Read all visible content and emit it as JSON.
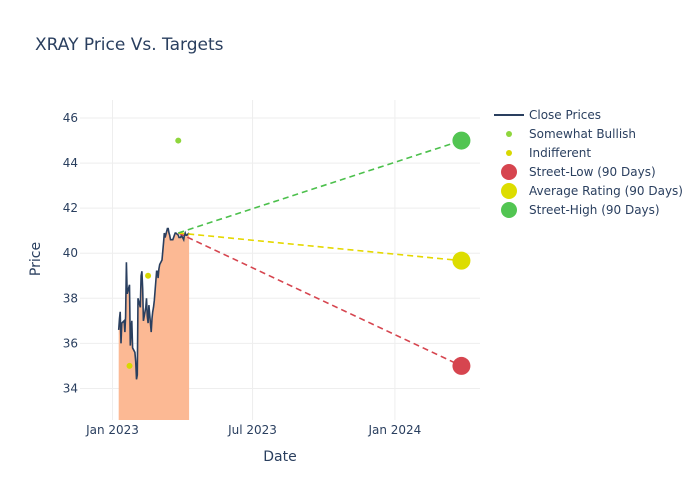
{
  "chart_data": {
    "type": "line",
    "title": "XRAY Price Vs. Targets",
    "xlabel": "Date",
    "ylabel": "Price",
    "ylim": [
      32.6,
      46.8
    ],
    "xlim": [
      "2022-11-20",
      "2024-04-20"
    ],
    "grid": true,
    "legend_position": "right",
    "x_ticks": [
      {
        "date": "2023-01-01",
        "label": "Jan 2023"
      },
      {
        "date": "2023-07-01",
        "label": "Jul 2023"
      },
      {
        "date": "2024-01-01",
        "label": "Jan 2024"
      }
    ],
    "y_ticks": [
      34,
      36,
      38,
      40,
      42,
      44,
      46
    ],
    "colors": {
      "close": "#2a3f5f",
      "area_fill": "#fcb994",
      "somewhat_bullish": "#8fd63d",
      "indifferent": "#d8d800",
      "low": "#d6454f",
      "avg": "#dddd00",
      "high": "#52c552",
      "text": "#2a3f5f",
      "grid": "#eeeeee"
    },
    "series": [
      {
        "name": "Close Prices",
        "type": "line",
        "x": [
          "2023-01-09",
          "2023-01-10",
          "2023-01-11",
          "2023-01-12",
          "2023-01-13",
          "2023-01-16",
          "2023-01-17",
          "2023-01-18",
          "2023-01-19",
          "2023-01-20",
          "2023-01-23",
          "2023-01-24",
          "2023-01-25",
          "2023-01-26",
          "2023-01-27",
          "2023-01-30",
          "2023-01-31",
          "2023-02-01",
          "2023-02-02",
          "2023-02-03",
          "2023-02-06",
          "2023-02-07",
          "2023-02-08",
          "2023-02-09",
          "2023-02-10",
          "2023-02-13",
          "2023-02-14",
          "2023-02-15",
          "2023-02-16",
          "2023-02-17",
          "2023-02-20",
          "2023-02-21",
          "2023-02-22",
          "2023-02-23",
          "2023-02-24",
          "2023-02-27",
          "2023-02-28",
          "2023-03-01",
          "2023-03-02",
          "2023-03-03",
          "2023-03-06",
          "2023-03-07",
          "2023-03-08",
          "2023-03-09",
          "2023-03-10",
          "2023-03-13",
          "2023-03-14",
          "2023-03-15",
          "2023-03-16",
          "2023-03-17",
          "2023-03-20",
          "2023-03-21",
          "2023-03-22",
          "2023-03-23",
          "2023-03-24",
          "2023-03-27",
          "2023-03-28",
          "2023-03-29",
          "2023-03-30",
          "2023-03-31",
          "2023-04-03",
          "2023-04-04",
          "2023-04-05",
          "2023-04-06",
          "2023-04-07",
          "2023-04-10"
        ],
        "y": [
          36.6,
          37.1,
          37.4,
          36.0,
          36.9,
          37.0,
          36.5,
          37.2,
          39.6,
          38.2,
          38.6,
          35.9,
          36.6,
          37.0,
          35.8,
          35.6,
          35.2,
          34.4,
          34.6,
          38.0,
          37.6,
          39.0,
          39.2,
          38.4,
          37.0,
          37.6,
          38.0,
          37.2,
          36.9,
          37.7,
          36.5,
          37.1,
          37.4,
          37.6,
          37.9,
          39.2,
          39.2,
          38.9,
          39.3,
          39.5,
          39.7,
          40.1,
          40.5,
          40.9,
          40.7,
          41.1,
          41.1,
          40.9,
          40.8,
          40.6,
          40.6,
          40.7,
          40.8,
          40.9,
          40.9,
          40.8,
          40.7,
          40.7,
          40.7,
          40.8,
          40.6,
          40.8,
          40.9,
          40.8,
          40.8,
          40.9
        ]
      },
      {
        "name": "Somewhat Bullish",
        "type": "scatter",
        "points": [
          {
            "x": "2023-03-27",
            "y": 45.0
          }
        ]
      },
      {
        "name": "Indifferent",
        "type": "scatter",
        "points": [
          {
            "x": "2023-01-23",
            "y": 35.0
          },
          {
            "x": "2023-02-16",
            "y": 39.0
          }
        ]
      },
      {
        "name": "Street-Low (90 Days)",
        "type": "target",
        "from": {
          "x": "2023-03-27",
          "y": 40.9
        },
        "to": {
          "x": "2024-03-27",
          "y": 35.0
        }
      },
      {
        "name": "Average Rating (90 Days)",
        "type": "target",
        "from": {
          "x": "2023-03-27",
          "y": 40.9
        },
        "to": {
          "x": "2024-03-27",
          "y": 39.67
        }
      },
      {
        "name": "Street-High (90 Days)",
        "type": "target",
        "from": {
          "x": "2023-03-27",
          "y": 40.9
        },
        "to": {
          "x": "2024-03-27",
          "y": 45.0
        }
      }
    ]
  }
}
